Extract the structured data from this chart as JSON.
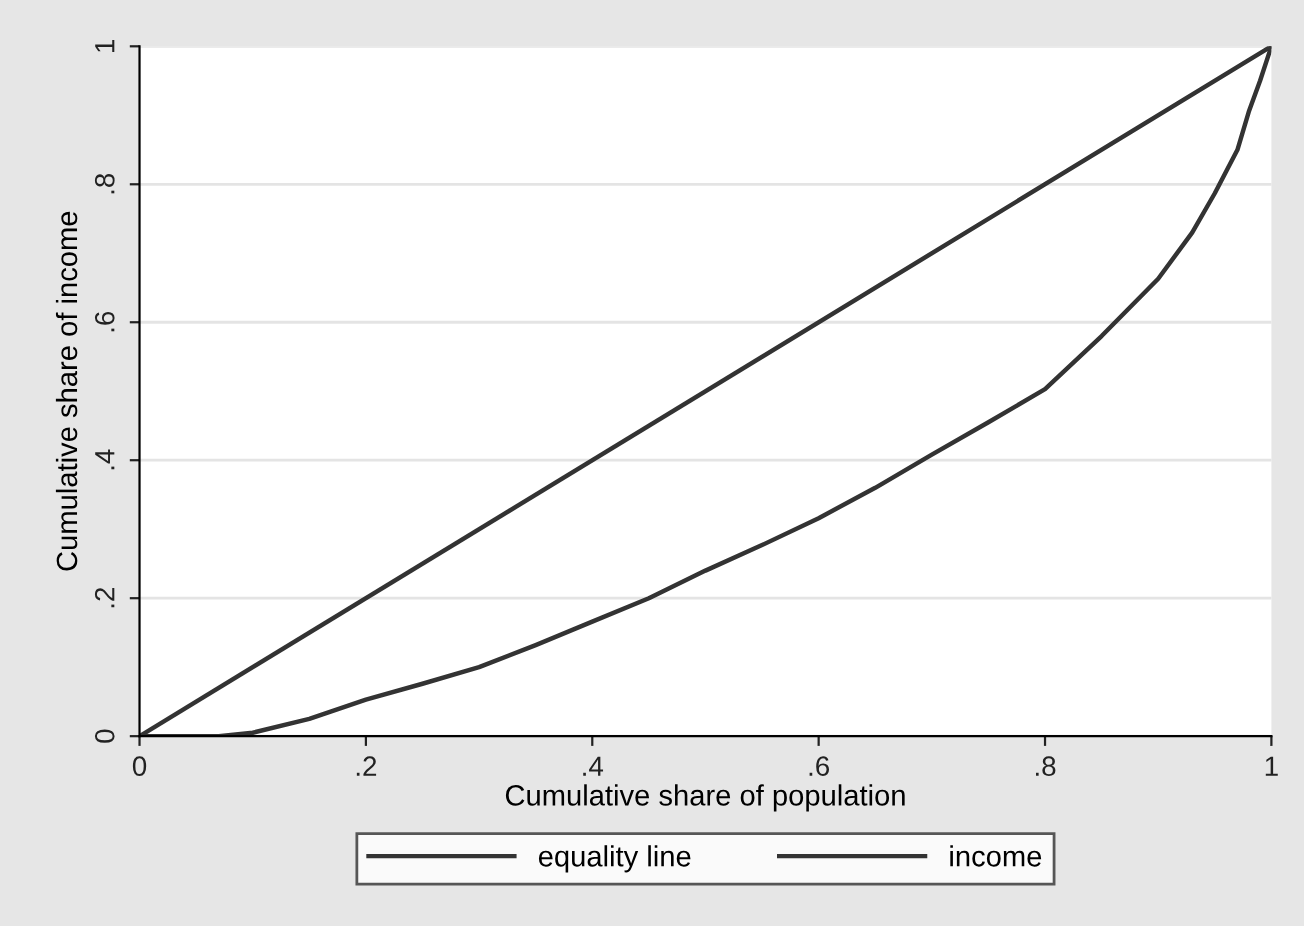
{
  "chart_data": {
    "type": "line",
    "xlabel": "Cumulative share of population",
    "ylabel": "Cumulative share of income",
    "xlim": [
      0,
      1
    ],
    "ylim": [
      0,
      1
    ],
    "xticks": [
      0,
      {
        "value": 0.2,
        "label": ".2"
      },
      {
        "value": 0.4,
        "label": ".4"
      },
      {
        "value": 0.6,
        "label": ".6"
      },
      {
        "value": 0.8,
        "label": ".8"
      },
      1
    ],
    "yticks": [
      0,
      {
        "value": 0.2,
        "label": ".2"
      },
      {
        "value": 0.4,
        "label": ".4"
      },
      {
        "value": 0.6,
        "label": ".6"
      },
      {
        "value": 0.8,
        "label": ".8"
      },
      1
    ],
    "grid": "y",
    "legend": "bottom",
    "series": [
      {
        "name": "equality line",
        "color": "#333333",
        "x": [
          0,
          1
        ],
        "values": [
          0,
          1
        ]
      },
      {
        "name": "income",
        "color": "#333333",
        "x": [
          0,
          0.07,
          0.1,
          0.15,
          0.2,
          0.25,
          0.3,
          0.35,
          0.4,
          0.45,
          0.5,
          0.55,
          0.6,
          0.65,
          0.7,
          0.75,
          0.8,
          0.85,
          0.9,
          0.93,
          0.95,
          0.97,
          0.98,
          0.99,
          1
        ],
        "values": [
          0,
          0,
          0.005,
          0.025,
          0.053,
          0.076,
          0.1,
          0.132,
          0.166,
          0.2,
          0.24,
          0.277,
          0.316,
          0.36,
          0.408,
          0.455,
          0.503,
          0.58,
          0.663,
          0.73,
          0.787,
          0.85,
          0.905,
          0.95,
          1
        ]
      }
    ]
  }
}
